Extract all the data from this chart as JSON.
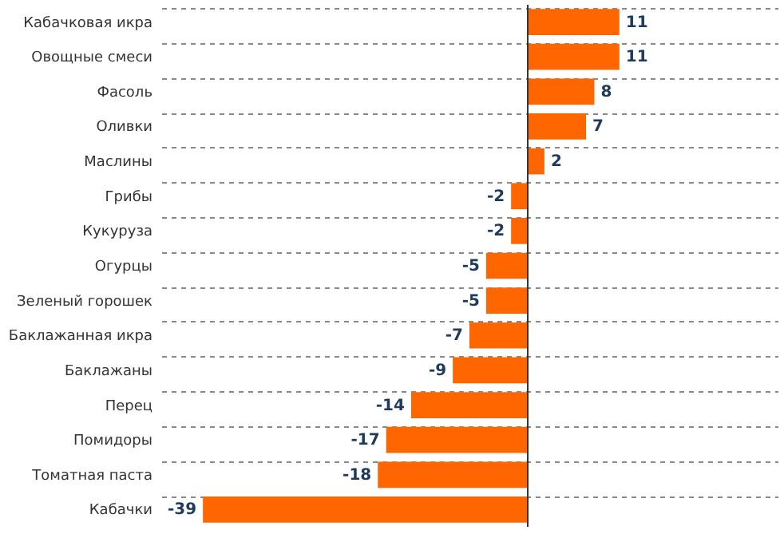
{
  "chart_data": {
    "type": "bar",
    "orientation": "horizontal",
    "categories": [
      "Кабачковая икра",
      "Овощные смеси",
      "Фасоль",
      "Оливки",
      "Маслины",
      "Грибы",
      "Кукуруза",
      "Огурцы",
      "Зеленый горошек",
      "Баклажанная икра",
      "Баклажаны",
      "Перец",
      "Помидоры",
      "Томатная паста",
      "Кабачки"
    ],
    "values": [
      11,
      11,
      8,
      7,
      2,
      -2,
      -2,
      -5,
      -5,
      -7,
      -9,
      -14,
      -17,
      -18,
      -39
    ],
    "color": "#ff6600",
    "xlim": [
      -44,
      30
    ],
    "data_labels": true,
    "grid": "y",
    "tick_labels": "y"
  }
}
